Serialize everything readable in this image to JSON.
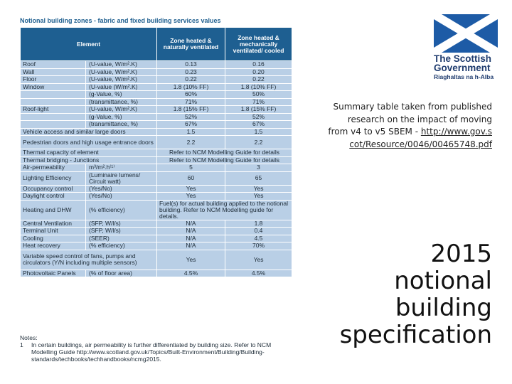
{
  "table_title": "Notional building zones - fabric and fixed building services values",
  "headers": {
    "element": "Element",
    "naturally": "Zone heated & naturally ventilated",
    "mechanically": "Zone heated & mechanically ventilated/ cooled"
  },
  "rows": [
    {
      "element": "Roof",
      "unit": "(U-value, W/m².K)",
      "nat": "0.13",
      "mech": "0.16"
    },
    {
      "element": "Wall",
      "unit": "(U-value, W/m².K)",
      "nat": "0.23",
      "mech": "0.20"
    },
    {
      "element": "Floor",
      "unit": "(U-value, W/m².K)",
      "nat": "0.22",
      "mech": "0.22"
    },
    {
      "element": "Window",
      "unit": "(U-value (W/m².K)",
      "nat": "1.8 (10% FF)",
      "mech": "1.8 (10% FF)"
    },
    {
      "element": "",
      "unit": "(g-Value, %)",
      "nat": "60%",
      "mech": "50%"
    },
    {
      "element": "",
      "unit": "(transmittance, %)",
      "nat": "71%",
      "mech": "71%"
    },
    {
      "element": "Roof-light",
      "unit": "(U-value, W/m².K)",
      "nat": "1.8 (15% FF)",
      "mech": "1.8 (15% FF)"
    },
    {
      "element": "",
      "unit": "(g-Value, %)",
      "nat": "52%",
      "mech": "52%"
    },
    {
      "element": "",
      "unit": "(transmittance, %)",
      "nat": "67%",
      "mech": "67%"
    },
    {
      "element": "Vehicle access and similar large doors",
      "unit": "",
      "nat": "1.5",
      "mech": "1.5"
    },
    {
      "element": "Pedestrian doors and high usage entrance doors",
      "unit": "",
      "nat": "2.2",
      "mech": "2.2"
    }
  ],
  "thermal_capacity": {
    "label": "Thermal capacity of element",
    "value": "Refer to NCM Modelling Guide for details"
  },
  "thermal_bridging": {
    "label": "Thermal bridging - Junctions",
    "value": "Refer to NCM Modelling Guide for details"
  },
  "air_perm": {
    "element": "Air-permeability",
    "unit": "m³/m².h⁽¹⁾",
    "nat": "5",
    "mech": "3"
  },
  "lighting": {
    "element": "Lighting Efficiency",
    "unit": "(Luminaire lumens/ Circuit watt)",
    "nat": "60",
    "mech": "65"
  },
  "occupancy": {
    "element": "Occupancy control",
    "unit": "(Yes/No)",
    "nat": "Yes",
    "mech": "Yes"
  },
  "daylight": {
    "element": "Daylight control",
    "unit": "(Yes/No)",
    "nat": "Yes",
    "mech": "Yes"
  },
  "heating": {
    "element": "Heating and DHW",
    "unit": "(% efficiency)",
    "value": "Fuel(s) for actual building applied to the notional building. Refer to NCM Modelling guide for details."
  },
  "rows2": [
    {
      "element": "Central Ventilation",
      "unit": "(SFP, W/l/s)",
      "nat": "N/A",
      "mech": "1.8"
    },
    {
      "element": "Terminal Unit",
      "unit": "(SFP, W/l/s)",
      "nat": "N/A",
      "mech": "0.4"
    },
    {
      "element": "Cooling",
      "unit": "(SEER)",
      "nat": "N/A",
      "mech": "4.5"
    },
    {
      "element": "Heat recovery",
      "unit": "(% efficiency)",
      "nat": "N/A",
      "mech": "70%"
    }
  ],
  "variable_speed": {
    "element": "Variable speed control of fans, pumps and circulators (Y/N including multiple sensors)",
    "nat": "Yes",
    "mech": "Yes"
  },
  "photovoltaic": {
    "element": "Photovoltaic Panels",
    "unit": "(% of floor area)",
    "nat": "4.5%",
    "mech": "4.5%"
  },
  "notes": {
    "heading": "Notes:",
    "num": "1",
    "text": "In certain buildings, air permeability is further differentiated by building size. Refer to NCM Modelling Guide http://www.scotland.gov.uk/Topics/Built-Environment/Building/Building-standards/techbooks/techhandbooks/ncmg2015."
  },
  "logo": {
    "name_line1": "The Scottish",
    "name_line2": "Government",
    "gaelic": "Riaghaltas na h-Alba",
    "flag_color": "#1d5ba6"
  },
  "summary": {
    "text": "Summary table taken from published research on the impact of moving from v4 to v5 SBEM -",
    "link": "http://www.gov.scot/Resource/0046/00465748.pdf"
  },
  "big_title": {
    "line1": "2015",
    "line2": "notional",
    "line3": "building",
    "line4": "specification"
  }
}
